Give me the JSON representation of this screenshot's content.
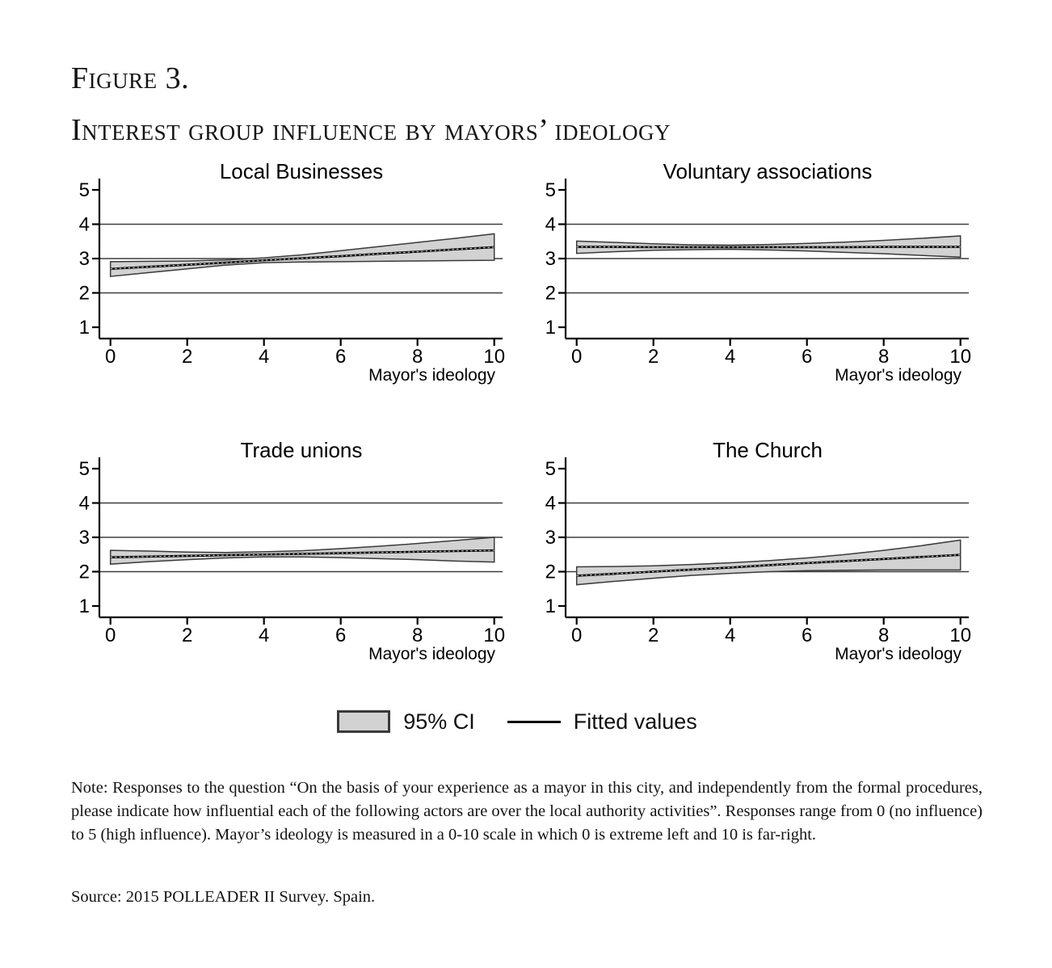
{
  "figure": {
    "label": "Figure 3.",
    "title": "Interest group influence by mayors’ ideology"
  },
  "charts": {
    "xlabel": "Mayor's ideology",
    "x_ticks": [
      0,
      2,
      4,
      6,
      8,
      10
    ],
    "y_ticks": [
      1,
      2,
      3,
      4,
      5
    ],
    "grid_y": [
      2,
      3,
      4
    ],
    "colors": {
      "band_fill": "#d2d2d2",
      "band_stroke": "#3a3a3a",
      "fitted_line": "#000000",
      "gridline": "#3d3d3d",
      "axis": "#000000"
    }
  },
  "chart_data": [
    {
      "type": "area",
      "title": "Local Businesses",
      "xlabel": "Mayor's ideology",
      "ylabel": "",
      "xlim": [
        0,
        10
      ],
      "ylim": [
        1,
        5
      ],
      "x": [
        0,
        1,
        2,
        3,
        4,
        5,
        6,
        7,
        8,
        9,
        10
      ],
      "series": [
        {
          "name": "Fitted values",
          "values": [
            2.7,
            2.76,
            2.82,
            2.88,
            2.95,
            3.01,
            3.07,
            3.14,
            3.2,
            3.27,
            3.33
          ]
        },
        {
          "name": "95% CI lower",
          "values": [
            2.48,
            2.59,
            2.7,
            2.81,
            2.88,
            2.9,
            2.91,
            2.92,
            2.93,
            2.94,
            2.95
          ]
        },
        {
          "name": "95% CI upper",
          "values": [
            2.91,
            2.92,
            2.93,
            2.96,
            3.02,
            3.11,
            3.23,
            3.35,
            3.47,
            3.59,
            3.72
          ]
        }
      ]
    },
    {
      "type": "area",
      "title": "Voluntary associations",
      "xlabel": "Mayor's ideology",
      "ylabel": "",
      "xlim": [
        0,
        10
      ],
      "ylim": [
        1,
        5
      ],
      "x": [
        0,
        1,
        2,
        3,
        4,
        5,
        6,
        7,
        8,
        9,
        10
      ],
      "series": [
        {
          "name": "Fitted values",
          "values": [
            3.34,
            3.34,
            3.33,
            3.33,
            3.33,
            3.33,
            3.33,
            3.33,
            3.34,
            3.34,
            3.34
          ]
        },
        {
          "name": "95% CI lower",
          "values": [
            3.15,
            3.2,
            3.24,
            3.26,
            3.27,
            3.25,
            3.22,
            3.18,
            3.14,
            3.09,
            3.04
          ]
        },
        {
          "name": "95% CI upper",
          "values": [
            3.51,
            3.47,
            3.43,
            3.4,
            3.39,
            3.41,
            3.44,
            3.48,
            3.53,
            3.59,
            3.66
          ]
        }
      ]
    },
    {
      "type": "area",
      "title": "Trade unions",
      "xlabel": "Mayor's ideology",
      "ylabel": "",
      "xlim": [
        0,
        10
      ],
      "ylim": [
        1,
        5
      ],
      "x": [
        0,
        1,
        2,
        3,
        4,
        5,
        6,
        7,
        8,
        9,
        10
      ],
      "series": [
        {
          "name": "Fitted values",
          "values": [
            2.42,
            2.44,
            2.46,
            2.48,
            2.5,
            2.52,
            2.54,
            2.56,
            2.58,
            2.6,
            2.62
          ]
        },
        {
          "name": "95% CI lower",
          "values": [
            2.22,
            2.29,
            2.35,
            2.4,
            2.43,
            2.43,
            2.41,
            2.38,
            2.35,
            2.31,
            2.28
          ]
        },
        {
          "name": "95% CI upper",
          "values": [
            2.62,
            2.6,
            2.57,
            2.56,
            2.58,
            2.61,
            2.67,
            2.74,
            2.82,
            2.91,
            3.0
          ]
        }
      ]
    },
    {
      "type": "area",
      "title": "The Church",
      "xlabel": "Mayor's ideology",
      "ylabel": "",
      "xlim": [
        0,
        10
      ],
      "ylim": [
        1,
        5
      ],
      "x": [
        0,
        1,
        2,
        3,
        4,
        5,
        6,
        7,
        8,
        9,
        10
      ],
      "series": [
        {
          "name": "Fitted values",
          "values": [
            1.88,
            1.94,
            2.0,
            2.06,
            2.12,
            2.19,
            2.25,
            2.31,
            2.37,
            2.43,
            2.49
          ]
        },
        {
          "name": "95% CI lower",
          "values": [
            1.62,
            1.72,
            1.81,
            1.89,
            1.95,
            2.0,
            2.03,
            2.04,
            2.05,
            2.05,
            2.05
          ]
        },
        {
          "name": "95% CI upper",
          "values": [
            2.14,
            2.15,
            2.17,
            2.21,
            2.26,
            2.32,
            2.4,
            2.5,
            2.62,
            2.76,
            2.92
          ]
        }
      ]
    }
  ],
  "legend": {
    "ci_label": "95% CI",
    "fit_label": "Fitted values"
  },
  "note": {
    "text": "Note: Responses to the question “On the basis of your experience as a mayor in this city, and independently from the formal procedures, please indicate how influential each of the following actors are over the local authority activities”. Responses range from 0 (no influence) to 5 (high influence). Mayor’s ideology is measured in a 0-10 scale in which 0 is extreme left and 10 is far-right."
  },
  "source": {
    "text": "Source: 2015 POLLEADER II Survey. Spain."
  }
}
